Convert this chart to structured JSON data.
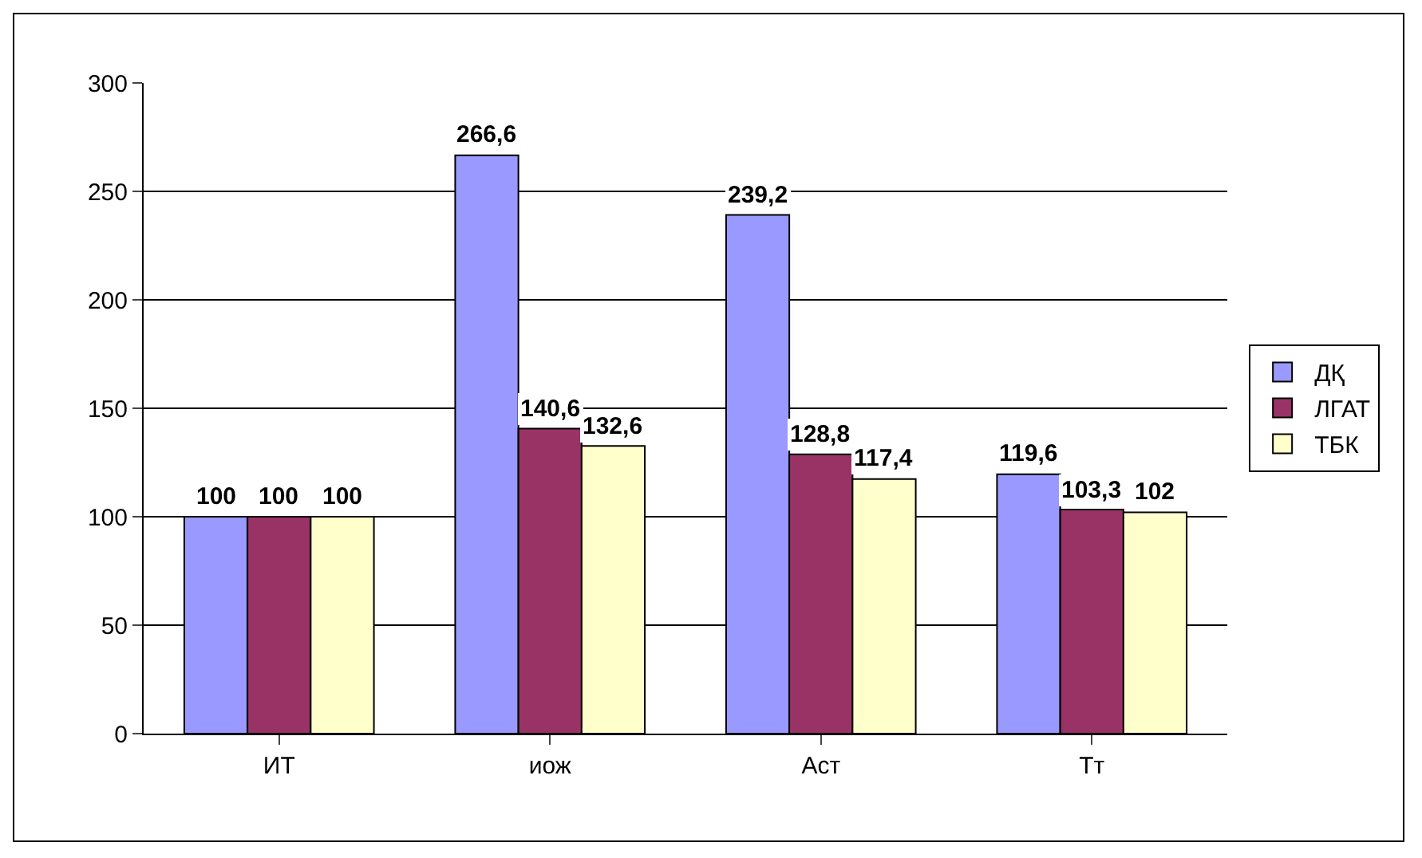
{
  "chart_data": {
    "type": "bar",
    "categories": [
      "ИТ",
      "иож",
      "Аст",
      "Тт"
    ],
    "series": [
      {
        "name": "ДҚ",
        "color": "#9999ff",
        "values": [
          100,
          266.6,
          239.2,
          119.6
        ],
        "value_labels": [
          "100",
          "266,6",
          "239,2",
          "119,6"
        ]
      },
      {
        "name": "ЛГАТ",
        "color": "#993366",
        "values": [
          100,
          140.6,
          128.8,
          103.3
        ],
        "value_labels": [
          "100",
          "140,6",
          "128,8",
          "103,3"
        ]
      },
      {
        "name": "ТБК",
        "color": "#ffffcc",
        "values": [
          100,
          132.6,
          117.4,
          102
        ],
        "value_labels": [
          "100",
          "132,6",
          "117,4",
          "102"
        ]
      }
    ],
    "ylim": [
      0,
      300
    ],
    "yticks": [
      0,
      50,
      100,
      150,
      200,
      250,
      300
    ],
    "grid": "y",
    "legend": "right"
  }
}
